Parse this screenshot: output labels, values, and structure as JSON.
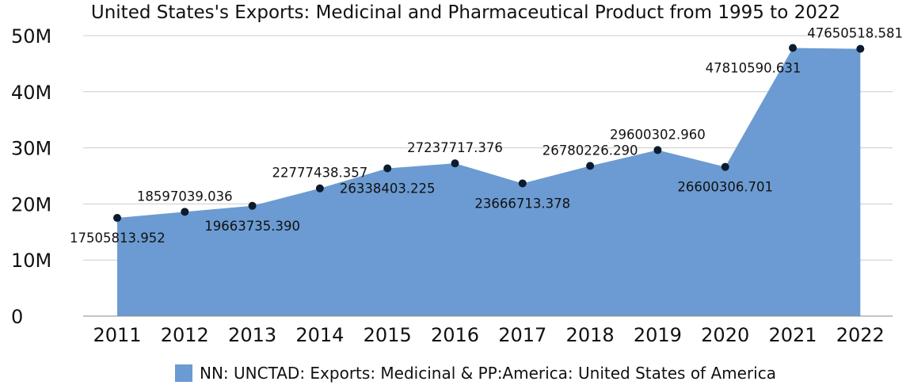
{
  "chart_data": {
    "type": "area",
    "title": "United States's Exports: Medicinal and Pharmaceutical Product from 1995 to 2022",
    "xlabel": "",
    "ylabel": "",
    "categories": [
      "2011",
      "2012",
      "2013",
      "2014",
      "2015",
      "2016",
      "2017",
      "2018",
      "2019",
      "2020",
      "2021",
      "2022"
    ],
    "series": [
      {
        "name": "NN: UNCTAD: Exports: Medicinal & PP:America: United States of America",
        "values": [
          17505813.952,
          18597039.036,
          19663735.39,
          22777438.357,
          26338403.225,
          27237717.376,
          23666713.378,
          26780226.29,
          29600302.96,
          26600306.701,
          47810590.631,
          47650518.581
        ],
        "labels": [
          "17505813.952",
          "18597039.036",
          "19663735.390",
          "22777438.357",
          "26338403.225",
          "27237717.376",
          "23666713.378",
          "26780226.290",
          "29600302.960",
          "26600306.701",
          "47810590.631",
          "47650518.581"
        ],
        "label_positions": [
          "below",
          "above",
          "below",
          "above",
          "below",
          "above",
          "below",
          "above",
          "above",
          "below",
          "below",
          "above"
        ]
      }
    ],
    "y_ticks": [
      0,
      10000000,
      20000000,
      30000000,
      40000000,
      50000000
    ],
    "y_tick_labels": [
      "0",
      "10M",
      "20M",
      "30M",
      "40M",
      "50M"
    ],
    "ylim": [
      0,
      50000000
    ],
    "grid": true,
    "legend_position": "bottom",
    "colors": {
      "area_fill": "#6b9bd2",
      "marker": "#0d1b2e",
      "grid": "#cccccc",
      "axis": "#888888"
    }
  }
}
